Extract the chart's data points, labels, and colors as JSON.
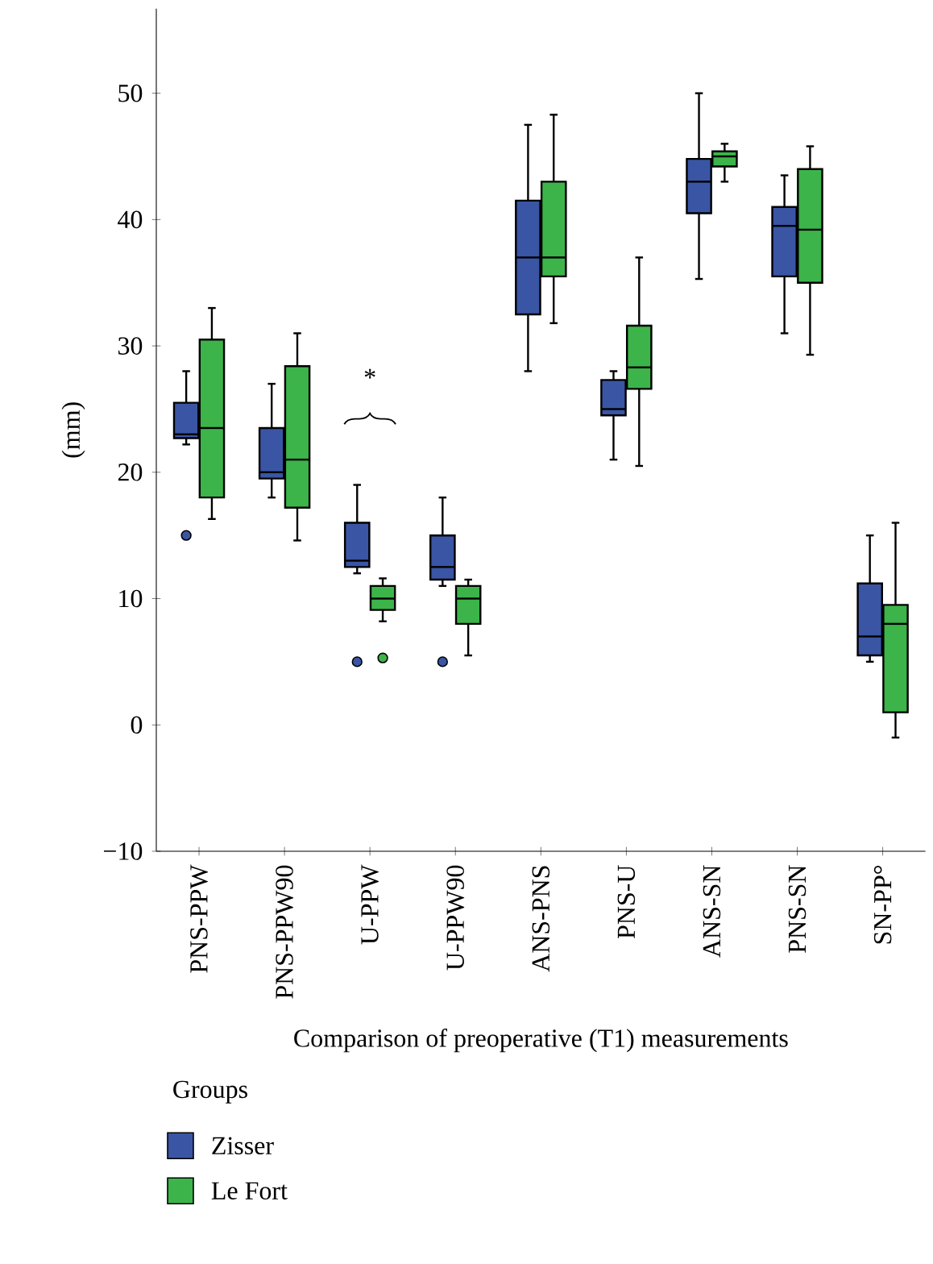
{
  "chart_data": {
    "type": "box",
    "xlabel": "Comparison of preoperative (T1) measurements",
    "ylabel": "(mm)",
    "legend_title": "Groups",
    "legend": "bottom left",
    "categories": [
      "PNS-PPW",
      "PNS-PPW90",
      "U-PPW",
      "U-PPW90",
      "ANS-PNS",
      "PNS-U",
      "ANS-SN",
      "PNS-SN",
      "SN-PP°"
    ],
    "ylim": [
      -10,
      56.7
    ],
    "yticks": [
      {
        "value": -10,
        "label": "−10"
      },
      0,
      10,
      20,
      30,
      40,
      50
    ],
    "annotations": [
      "*"
    ],
    "series": [
      {
        "name": "Zisser",
        "color": "#3a55a4",
        "boxes": [
          {
            "low": 22.2,
            "q1": 22.7,
            "median": 23,
            "q3": 25.5,
            "high": 28,
            "outliers": [
              15
            ]
          },
          {
            "low": 18,
            "q1": 19.5,
            "median": 20,
            "q3": 23.5,
            "high": 27
          },
          {
            "low": 12,
            "q1": 12.5,
            "median": 13,
            "q3": 16,
            "high": 19,
            "outliers": [
              5
            ]
          },
          {
            "low": 11,
            "q1": 11.5,
            "median": 12.5,
            "q3": 15,
            "high": 18,
            "outliers": [
              5
            ]
          },
          {
            "low": 28,
            "q1": 32.5,
            "median": 37,
            "q3": 41.5,
            "high": 47.5
          },
          {
            "low": 21,
            "q1": 24.5,
            "median": 25,
            "q3": 27.3,
            "high": 28
          },
          {
            "low": 35.3,
            "q1": 40.5,
            "median": 43,
            "q3": 44.8,
            "high": 50
          },
          {
            "low": 31,
            "q1": 35.5,
            "median": 39.5,
            "q3": 41,
            "high": 43.5
          },
          {
            "low": 5,
            "q1": 5.5,
            "median": 7,
            "q3": 11.2,
            "high": 15
          }
        ]
      },
      {
        "name": "Le Fort",
        "color": "#3cb44a",
        "boxes": [
          {
            "low": 16.3,
            "q1": 18,
            "median": 23.5,
            "q3": 30.5,
            "high": 33
          },
          {
            "low": 14.6,
            "q1": 17.2,
            "median": 21,
            "q3": 28.4,
            "high": 31
          },
          {
            "low": 8.2,
            "q1": 9.1,
            "median": 10,
            "q3": 11,
            "high": 11.6,
            "outliers": [
              5.3
            ]
          },
          {
            "low": 5.5,
            "q1": 8,
            "median": 10,
            "q3": 11,
            "high": 11.5
          },
          {
            "low": 31.8,
            "q1": 35.5,
            "median": 37,
            "q3": 43,
            "high": 48.3
          },
          {
            "low": 20.5,
            "q1": 26.6,
            "median": 28.3,
            "q3": 31.6,
            "high": 37
          },
          {
            "low": 43,
            "q1": 44.2,
            "median": 45,
            "q3": 45.4,
            "high": 46
          },
          {
            "low": 29.3,
            "q1": 35,
            "median": 39.2,
            "q3": 44,
            "high": 45.8
          },
          {
            "low": -1,
            "q1": 1,
            "median": 8,
            "q3": 9.5,
            "high": 16
          }
        ]
      }
    ]
  }
}
